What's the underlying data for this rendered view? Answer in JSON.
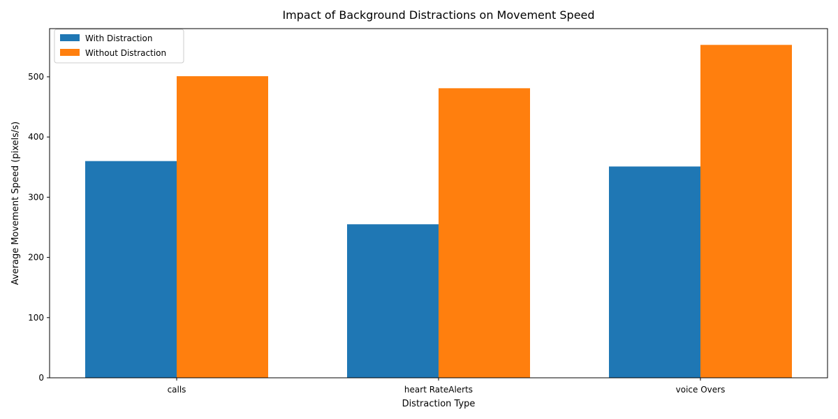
{
  "chart_data": {
    "type": "bar",
    "title": "Impact of Background Distractions on Movement Speed",
    "xlabel": "Distraction Type",
    "ylabel": "Average Movement Speed (pixels/s)",
    "categories": [
      "calls",
      "heart RateAlerts",
      "voice Overs"
    ],
    "series": [
      {
        "name": "With Distraction",
        "values": [
          360,
          255,
          351
        ],
        "color": "#1f77b4"
      },
      {
        "name": "Without Distraction",
        "values": [
          501,
          481,
          553
        ],
        "color": "#ff7f0e"
      }
    ],
    "ylim": [
      0,
      580
    ],
    "yticks": [
      0,
      100,
      200,
      300,
      400,
      500
    ],
    "grid": false,
    "legend_position": "top-left"
  }
}
